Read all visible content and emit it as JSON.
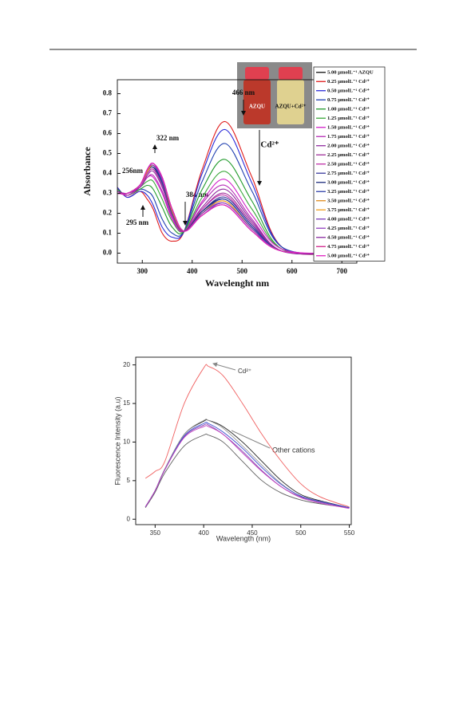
{
  "chart_data": [
    {
      "type": "line",
      "x_label": "Wavelenght nm",
      "y_label": "Absorbance",
      "xlim": [
        250,
        730
      ],
      "ylim": [
        -0.05,
        0.87
      ],
      "xticks": [
        300,
        400,
        500,
        600,
        700
      ],
      "yticks": [
        {
          "value": 0,
          "label": "0.0"
        },
        0.1,
        0.2,
        0.3,
        0.4,
        0.5,
        0.6,
        0.7,
        0.8
      ],
      "legend": "right",
      "annotations": [
        "466 nm",
        "322 nm",
        "256nm",
        "295 nm",
        "384 nm",
        "Cd²⁺"
      ],
      "inset_labels": [
        "AZQU",
        "AZQU+Cd²⁺"
      ],
      "x": [
        250,
        270,
        295,
        310,
        322,
        340,
        360,
        384,
        420,
        466,
        520,
        580,
        700
      ],
      "series": [
        {
          "name": "5.00 µmolL⁻¹ AZQU",
          "color": "#111111",
          "values": [
            0.3,
            0.3,
            0.34,
            0.41,
            0.43,
            0.36,
            0.21,
            0.11,
            0.21,
            0.27,
            0.13,
            0.01,
            0
          ]
        },
        {
          "name": "0.25 µmolL⁻¹ Cd²⁺",
          "color": "#e01a1a",
          "values": [
            0.33,
            0.28,
            0.31,
            0.27,
            0.22,
            0.1,
            0.06,
            0.11,
            0.42,
            0.66,
            0.38,
            0.03,
            0
          ]
        },
        {
          "name": "0.50 µmolL⁻¹ Cd²⁺",
          "color": "#2a2ad8",
          "values": [
            0.33,
            0.28,
            0.31,
            0.29,
            0.24,
            0.13,
            0.08,
            0.11,
            0.4,
            0.62,
            0.35,
            0.03,
            0
          ]
        },
        {
          "name": "0.75 µmolL⁻¹ Cd²⁺",
          "color": "#1f3fb0",
          "values": [
            0.32,
            0.29,
            0.32,
            0.31,
            0.28,
            0.17,
            0.1,
            0.11,
            0.36,
            0.55,
            0.31,
            0.03,
            0
          ]
        },
        {
          "name": "1.00 µmolL⁻¹ Cd²⁺",
          "color": "#1f9a2a",
          "values": [
            0.32,
            0.29,
            0.32,
            0.34,
            0.32,
            0.23,
            0.13,
            0.11,
            0.32,
            0.47,
            0.26,
            0.02,
            0
          ]
        },
        {
          "name": "1.25 µmolL⁻¹ Cd²⁺",
          "color": "#3aa83a",
          "values": [
            0.31,
            0.29,
            0.33,
            0.36,
            0.36,
            0.27,
            0.16,
            0.11,
            0.28,
            0.41,
            0.22,
            0.02,
            0
          ]
        },
        {
          "name": "1.50 µmolL⁻¹ Cd²⁺",
          "color": "#d11fc8",
          "values": [
            0.31,
            0.29,
            0.33,
            0.38,
            0.38,
            0.3,
            0.17,
            0.11,
            0.26,
            0.37,
            0.19,
            0.02,
            0
          ]
        },
        {
          "name": "1.75 µmolL⁻¹ Cd²⁺",
          "color": "#b52bb5",
          "values": [
            0.31,
            0.3,
            0.33,
            0.38,
            0.39,
            0.31,
            0.18,
            0.11,
            0.25,
            0.34,
            0.17,
            0.01,
            0
          ]
        },
        {
          "name": "2.00 µmolL⁻¹ Cd²⁺",
          "color": "#8e2a9e",
          "values": [
            0.31,
            0.3,
            0.33,
            0.39,
            0.41,
            0.33,
            0.19,
            0.11,
            0.23,
            0.32,
            0.16,
            0.01,
            0
          ]
        },
        {
          "name": "2.25 µmolL⁻¹ Cd²⁺",
          "color": "#a0309a",
          "values": [
            0.3,
            0.3,
            0.34,
            0.4,
            0.42,
            0.34,
            0.2,
            0.11,
            0.22,
            0.3,
            0.15,
            0.01,
            0
          ]
        },
        {
          "name": "2.50 µmolL⁻¹ Cd²⁺",
          "color": "#c02ea8",
          "values": [
            0.3,
            0.3,
            0.34,
            0.4,
            0.42,
            0.35,
            0.2,
            0.11,
            0.22,
            0.29,
            0.14,
            0.01,
            0
          ]
        },
        {
          "name": "2.75 µmolL⁻¹ Cd²⁺",
          "color": "#3a3a9e",
          "values": [
            0.3,
            0.3,
            0.34,
            0.41,
            0.43,
            0.35,
            0.2,
            0.11,
            0.21,
            0.28,
            0.14,
            0.01,
            0
          ]
        },
        {
          "name": "3.00 µmolL⁻¹ Cd²⁺",
          "color": "#1c2a7a",
          "values": [
            0.3,
            0.3,
            0.34,
            0.41,
            0.43,
            0.36,
            0.21,
            0.11,
            0.21,
            0.27,
            0.13,
            0.01,
            0
          ]
        },
        {
          "name": "3.25 µmolL⁻¹ Cd²⁺",
          "color": "#2d3fa8",
          "values": [
            0.3,
            0.3,
            0.34,
            0.41,
            0.44,
            0.36,
            0.21,
            0.11,
            0.2,
            0.27,
            0.13,
            0.01,
            0
          ]
        },
        {
          "name": "3.50 µmolL⁻¹ Cd²⁺",
          "color": "#e08a1c",
          "values": [
            0.3,
            0.3,
            0.34,
            0.41,
            0.44,
            0.37,
            0.21,
            0.11,
            0.2,
            0.26,
            0.12,
            0.01,
            0
          ]
        },
        {
          "name": "3.75 µmolL⁻¹ Cd²⁺",
          "color": "#f0a020",
          "values": [
            0.3,
            0.3,
            0.34,
            0.41,
            0.44,
            0.37,
            0.21,
            0.11,
            0.2,
            0.26,
            0.12,
            0.01,
            0
          ]
        },
        {
          "name": "4.00 µmolL⁻¹ Cd²⁺",
          "color": "#7a3ab8",
          "values": [
            0.3,
            0.3,
            0.34,
            0.42,
            0.44,
            0.37,
            0.22,
            0.11,
            0.2,
            0.25,
            0.12,
            0.01,
            0
          ]
        },
        {
          "name": "4.25 µmolL⁻¹ Cd²⁺",
          "color": "#9440c0",
          "values": [
            0.3,
            0.3,
            0.34,
            0.42,
            0.45,
            0.37,
            0.22,
            0.11,
            0.19,
            0.25,
            0.12,
            0.01,
            0
          ]
        },
        {
          "name": "4.50 µmolL⁻¹ Cd²⁺",
          "color": "#8a2aa0",
          "values": [
            0.3,
            0.3,
            0.34,
            0.42,
            0.45,
            0.38,
            0.22,
            0.11,
            0.19,
            0.24,
            0.11,
            0.01,
            0
          ]
        },
        {
          "name": "4.75 µmolL⁻¹ Cd²⁺",
          "color": "#d0208a",
          "values": [
            0.3,
            0.3,
            0.34,
            0.42,
            0.45,
            0.38,
            0.22,
            0.11,
            0.19,
            0.24,
            0.11,
            0.01,
            0
          ]
        },
        {
          "name": "5.00 µmolL⁻¹ Cd²⁺",
          "color": "#e020c0",
          "values": [
            0.3,
            0.3,
            0.34,
            0.42,
            0.45,
            0.38,
            0.22,
            0.11,
            0.19,
            0.24,
            0.11,
            0.01,
            0
          ]
        }
      ]
    },
    {
      "type": "line",
      "x_label": "Wavelength (nm)",
      "y_label": "Fluorescence Intensity (a.u)",
      "xlim": [
        330,
        552
      ],
      "ylim": [
        -0.7,
        21
      ],
      "xticks": [
        350,
        400,
        450,
        500,
        550
      ],
      "yticks": [
        0,
        5,
        10,
        15,
        20
      ],
      "annotations": [
        "Cd²⁺",
        "Other cations"
      ],
      "x": [
        340,
        350,
        360,
        380,
        400,
        405,
        420,
        440,
        460,
        480,
        500,
        520,
        550
      ],
      "series": [
        {
          "color": "#f06060",
          "values": [
            5.3,
            6.2,
            7.5,
            15,
            19.6,
            19.8,
            18.6,
            15,
            11,
            7.5,
            4.6,
            2.9,
            1.6
          ]
        },
        {
          "color": "#606060",
          "values": [
            1.5,
            3.5,
            6,
            9.5,
            10.9,
            10.9,
            10,
            7.5,
            5,
            3.4,
            2.5,
            2,
            1.5
          ]
        },
        {
          "color": "#222222",
          "values": [
            1.6,
            3.7,
            6.5,
            11,
            12.7,
            12.8,
            12,
            10,
            7.5,
            5,
            3.2,
            2.4,
            1.5
          ]
        },
        {
          "color": "#9a9a9a",
          "values": [
            1.6,
            3.7,
            6.5,
            11,
            12.8,
            12.8,
            11.8,
            9.5,
            7,
            4.6,
            3,
            2.3,
            1.5
          ]
        },
        {
          "color": "#8a4ab0",
          "values": [
            1.6,
            3.7,
            6.4,
            10.7,
            12.2,
            12.2,
            11,
            8.8,
            6.3,
            4.2,
            2.9,
            2.2,
            1.5
          ]
        },
        {
          "color": "#3a4ad0",
          "values": [
            1.6,
            3.7,
            6.4,
            10.8,
            12.4,
            12.4,
            11.3,
            9.2,
            6.7,
            4.5,
            3,
            2.3,
            1.5
          ]
        },
        {
          "color": "#c040c0",
          "values": [
            1.6,
            3.7,
            6.4,
            10.6,
            12,
            12,
            11,
            8.6,
            6.2,
            4.2,
            2.8,
            2.1,
            1.4
          ]
        }
      ]
    }
  ]
}
